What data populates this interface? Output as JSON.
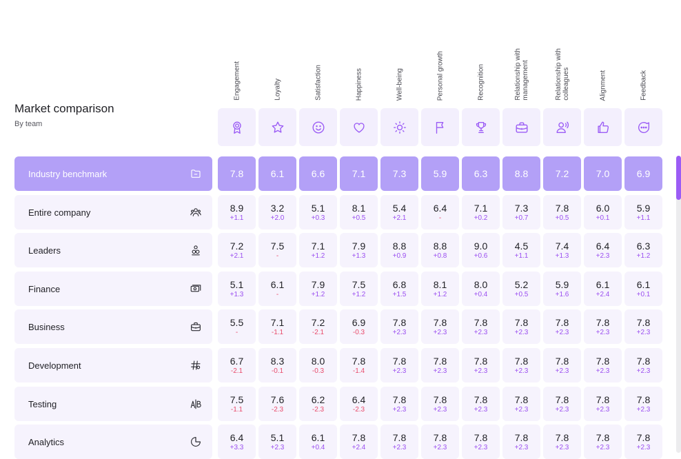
{
  "header": {
    "title": "Market comparison",
    "subtitle": "By team"
  },
  "columns": [
    {
      "label": "Engagement",
      "icon": "award-icon"
    },
    {
      "label": "Loyalty",
      "icon": "star-icon"
    },
    {
      "label": "Satisfaction",
      "icon": "smile-icon"
    },
    {
      "label": "Happiness",
      "icon": "heart-icon"
    },
    {
      "label": "Well-being",
      "icon": "sun-icon"
    },
    {
      "label": "Personal growth",
      "icon": "flag-icon"
    },
    {
      "label": "Recognition",
      "icon": "trophy-icon"
    },
    {
      "label": "Relationship with\nmanagement",
      "icon": "briefcase-icon"
    },
    {
      "label": "Relationship with\ncolleagues",
      "icon": "user-voice-icon"
    },
    {
      "label": "Alignment",
      "icon": "thumbs-up-icon"
    },
    {
      "label": "Feedback",
      "icon": "chat-icon"
    }
  ],
  "rows": [
    {
      "name": "Industry benchmark",
      "icon": "folder-icon",
      "benchmark": true,
      "values": [
        "7.8",
        "6.1",
        "6.6",
        "7.1",
        "7.3",
        "5.9",
        "6.3",
        "8.8",
        "7.2",
        "7.0",
        "6.9"
      ],
      "deltas": []
    },
    {
      "name": "Entire company",
      "icon": "people-icon",
      "values": [
        "8.9",
        "3.2",
        "5.1",
        "8.1",
        "5.4",
        "6.4",
        "7.1",
        "7.3",
        "7.8",
        "6.0",
        "5.9"
      ],
      "deltas": [
        "+1.1",
        "+2.0",
        "+0.3",
        "+0.5",
        "+2.1",
        "-",
        "+0.2",
        "+0.7",
        "+0.5",
        "+0.1",
        "+1.1"
      ]
    },
    {
      "name": "Leaders",
      "icon": "leader-icon",
      "values": [
        "7.2",
        "7.5",
        "7.1",
        "7.9",
        "8.8",
        "8.8",
        "9.0",
        "4.5",
        "7.4",
        "6.4",
        "6.3"
      ],
      "deltas": [
        "+2.1",
        "-",
        "+1.2",
        "+1.3",
        "+0.9",
        "+0.8",
        "+0.6",
        "+1.1",
        "+1.3",
        "+2.3",
        "+1.2"
      ]
    },
    {
      "name": "Finance",
      "icon": "money-icon",
      "values": [
        "5.1",
        "6.1",
        "7.9",
        "7.5",
        "6.8",
        "8.1",
        "8.0",
        "5.2",
        "5.9",
        "6.1",
        "6.1"
      ],
      "deltas": [
        "+1.3",
        "-",
        "+1.2",
        "+1.2",
        "+1.5",
        "+1.2",
        "+0.4",
        "+0.5",
        "+1.6",
        "+2.4",
        "+0.1"
      ]
    },
    {
      "name": "Business",
      "icon": "briefcase-icon",
      "values": [
        "5.5",
        "7.1",
        "7.2",
        "6.9",
        "7.8",
        "7.8",
        "7.8",
        "7.8",
        "7.8",
        "7.8",
        "7.8"
      ],
      "deltas": [
        "-",
        "-1.1",
        "-2.1",
        "-0.3",
        "+2.3",
        "+2.3",
        "+2.3",
        "+2.3",
        "+2.3",
        "+2.3",
        "+2.3"
      ]
    },
    {
      "name": "Development",
      "icon": "code-icon",
      "values": [
        "6.7",
        "8.3",
        "8.0",
        "7.8",
        "7.8",
        "7.8",
        "7.8",
        "7.8",
        "7.8",
        "7.8",
        "7.8"
      ],
      "deltas": [
        "-2.1",
        "-0.1",
        "-0.3",
        "-1.4",
        "+2.3",
        "+2.3",
        "+2.3",
        "+2.3",
        "+2.3",
        "+2.3",
        "+2.3"
      ]
    },
    {
      "name": "Testing",
      "icon": "ab-test-icon",
      "values": [
        "7.5",
        "7.6",
        "6.2",
        "6.4",
        "7.8",
        "7.8",
        "7.8",
        "7.8",
        "7.8",
        "7.8",
        "7.8"
      ],
      "deltas": [
        "-1.1",
        "-2.3",
        "-2.3",
        "-2.3",
        "+2.3",
        "+2.3",
        "+2.3",
        "+2.3",
        "+2.3",
        "+2.3",
        "+2.3"
      ]
    },
    {
      "name": "Analytics",
      "icon": "pie-chart-icon",
      "values": [
        "6.4",
        "5.1",
        "6.1",
        "7.8",
        "7.8",
        "7.8",
        "7.8",
        "7.8",
        "7.8",
        "7.8",
        "7.8"
      ],
      "deltas": [
        "+3.3",
        "+2.3",
        "+0.4",
        "+2.4",
        "+2.3",
        "+2.3",
        "+2.3",
        "+2.3",
        "+2.3",
        "+2.3",
        "+2.3"
      ]
    }
  ],
  "colors": {
    "accent": "#9b5cf5",
    "benchmark": "#b3a0f7",
    "cell": "#f6f3fd",
    "negative": "#e84a6a",
    "positive": "#9b4ff0"
  }
}
